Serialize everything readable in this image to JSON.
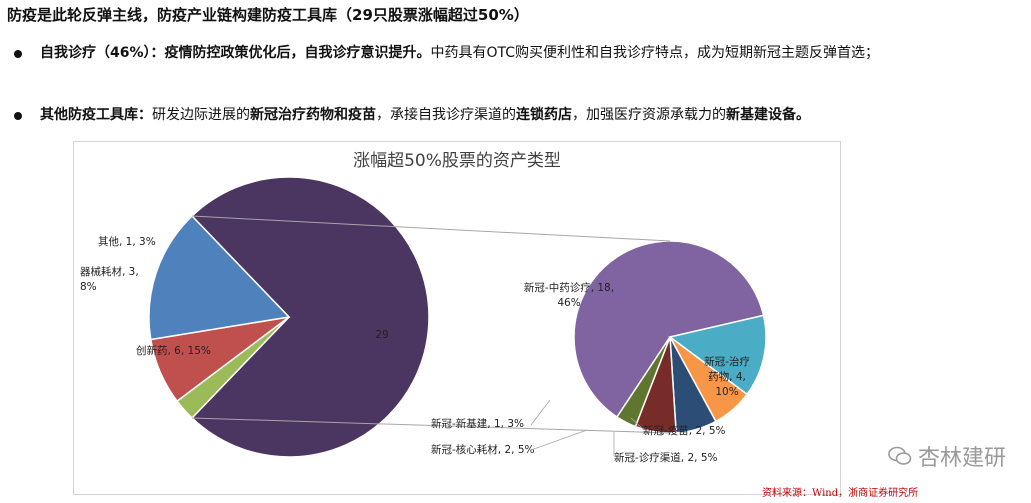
{
  "heading": "防疫是此轮反弹主线，防疫产业链构建防疫工具库（29只股票涨幅超过50%）",
  "bullet1": {
    "bold": "自我诊疗（46%）：疫情防控政策优化后，自我诊疗意识提升。",
    "rest": "中药具有OTC购买便利性和自我诊疗特点，成为短期新冠主题反弹首选；"
  },
  "bullet2": {
    "p1_bold": "其他防疫工具库：",
    "p2": "研发边际进展的",
    "p3_bold": "新冠治疗药物和疫苗",
    "p4": "，承接自我诊疗渠道的",
    "p5_bold": "连锁药店",
    "p6": "，加强医疗资源承载力的",
    "p7_bold": "新基建设备。"
  },
  "source": "资料来源：Wind，浙商证券研究所",
  "watermark": "杏林建研",
  "chart_data": {
    "type": "pie",
    "title": "涨幅超50%股票的资产类型",
    "main_pie": [
      {
        "name": "新冠",
        "value": 29,
        "label": "29",
        "color": "#4b3561"
      },
      {
        "name": "其他",
        "value": 1,
        "label": "其他, 1, 3%",
        "color": "#9bbb59"
      },
      {
        "name": "器械耗材",
        "value": 3,
        "label": "器械耗材, 3, 8%",
        "color": "#c0504d"
      },
      {
        "name": "创新药",
        "value": 6,
        "label": "创新药, 6, 15%",
        "color": "#4f81bd"
      }
    ],
    "sub_pie": [
      {
        "name": "新冠-中药诊疗",
        "value": 18,
        "label": "新冠-中药诊疗, 18, 46%",
        "color": "#8064a2"
      },
      {
        "name": "新冠-治疗药物",
        "value": 4,
        "label": "新冠-治疗药物, 4, 10%",
        "color": "#4bacc6"
      },
      {
        "name": "新冠-疫苗",
        "value": 2,
        "label": "新冠-疫苗, 2, 5%",
        "color": "#f79646"
      },
      {
        "name": "新冠-诊疗渠道",
        "value": 2,
        "label": "新冠-诊疗渠道, 2, 5%",
        "color": "#2c4d75"
      },
      {
        "name": "新冠-核心耗材",
        "value": 2,
        "label": "新冠-核心耗材, 2, 5%",
        "color": "#772c2a"
      },
      {
        "name": "新冠-新基建",
        "value": 1,
        "label": "新冠-新基建, 1, 3%",
        "color": "#5f7530"
      }
    ]
  }
}
